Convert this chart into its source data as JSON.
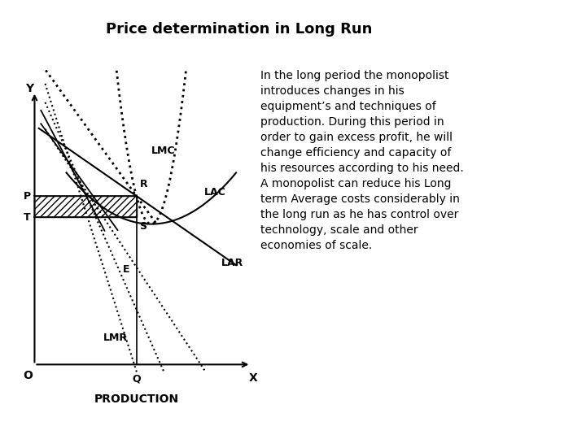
{
  "title": "Price determination in Long Run",
  "title_fontsize": 13,
  "title_fontweight": "bold",
  "body_text": "In the long period the monopolist\nintroduces changes in his\nequipment’s and techniques of\nproduction. During this period in\norder to gain excess profit, he will\nchange efficiency and capacity of\nhis resources according to his need.\nA monopolist can reduce his Long\nterm Average costs considerably in\nthe long run as he has control over\ntechnology, scale and other\neconomies of scale.",
  "body_text_fontsize": 10,
  "background_color": "#ffffff",
  "label_fontsize": 9,
  "production_label": "PRODUCTION",
  "x_label": "X",
  "y_label": "Y",
  "o_label": "O",
  "P_label": "P",
  "T_label": "T",
  "Q_label": "Q",
  "R_label": "R",
  "S_label": "S",
  "E_label": "E",
  "LMC_label": "LMC",
  "LAC_label": "LAC",
  "LAR_label": "LAR",
  "LMR_label": "LMR"
}
